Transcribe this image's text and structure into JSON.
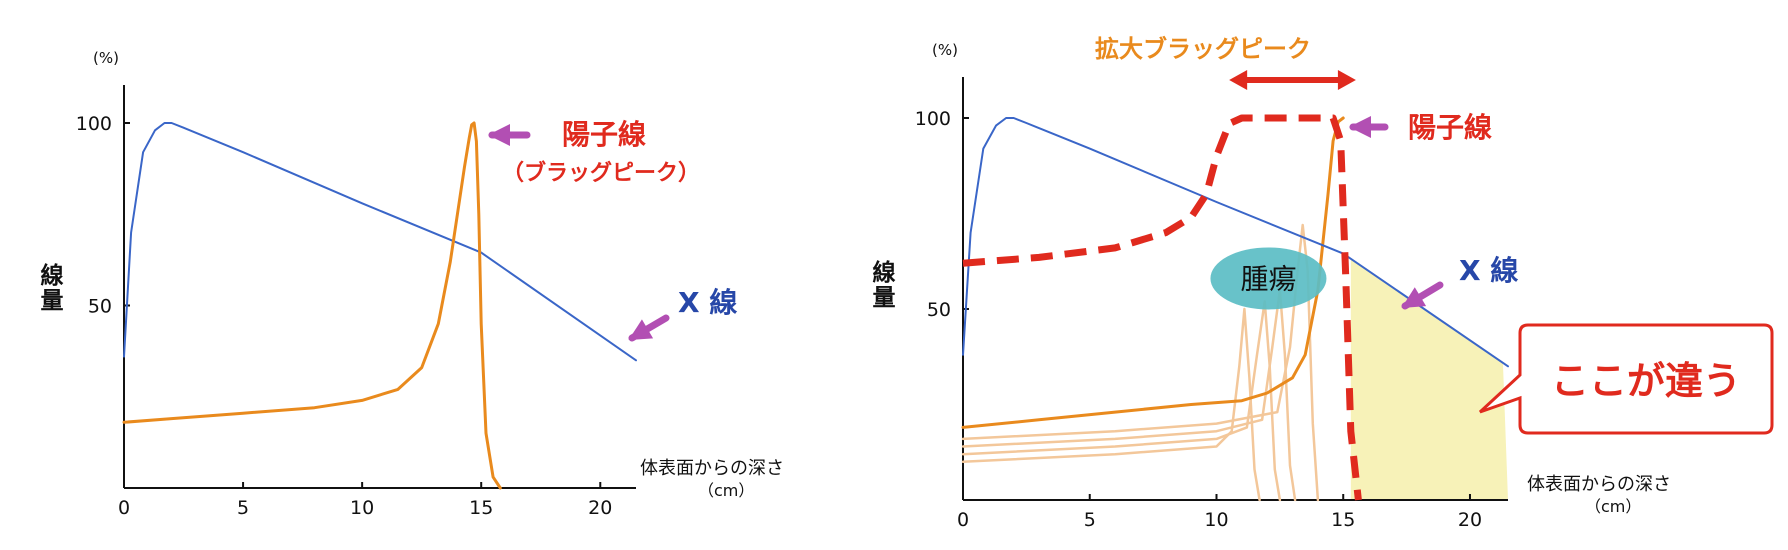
{
  "chart_data": [
    {
      "type": "line",
      "xlabel": "体表面からの深さ",
      "xunit": "（cm）",
      "ylabel": "線量",
      "yunit": "(%)",
      "xlim": [
        0,
        21.5
      ],
      "ylim": [
        0,
        100
      ],
      "x_ticks": [
        0,
        5,
        10,
        15,
        20
      ],
      "y_ticks": [
        50,
        100
      ],
      "series": [
        {
          "name": "X 線",
          "color": "#3a66c8",
          "x": [
            0,
            0.3,
            0.8,
            1.3,
            1.7,
            2.0,
            2.5,
            5,
            10,
            15,
            21.5
          ],
          "y": [
            36,
            70,
            92,
            98,
            100,
            100,
            98.7,
            92,
            78,
            64.5,
            35
          ]
        },
        {
          "name": "陽子線",
          "color": "#e98a1d",
          "x": [
            0,
            2,
            5,
            8,
            10,
            11.5,
            12.5,
            13.2,
            13.7,
            14.0,
            14.3,
            14.5,
            14.6,
            14.7,
            14.8,
            14.9,
            15.0,
            15.2,
            15.5,
            15.8
          ],
          "y": [
            18,
            19,
            20.5,
            22,
            24,
            27,
            33,
            45,
            62,
            75,
            88,
            96,
            99.5,
            100,
            95,
            75,
            45,
            15,
            3,
            0
          ]
        }
      ],
      "annotations": {
        "proton_label": "陽子線",
        "proton_sub": "（ブラッグピーク）",
        "xray_label": "X 線"
      }
    },
    {
      "type": "line",
      "xlabel": "体表面からの深さ",
      "xunit": "（cm）",
      "ylabel": "線量",
      "yunit": "(%)",
      "xlim": [
        0,
        21.5
      ],
      "ylim": [
        0,
        100
      ],
      "x_ticks": [
        0,
        5,
        10,
        15,
        20
      ],
      "y_ticks": [
        50,
        100
      ],
      "series": [
        {
          "name": "X 線",
          "color": "#3a66c8",
          "x": [
            0,
            0.3,
            0.8,
            1.3,
            1.7,
            2.0,
            2.5,
            5,
            10,
            15,
            21.5
          ],
          "y": [
            38,
            70,
            92,
            98,
            100,
            100,
            98.7,
            92,
            78,
            64.5,
            35
          ]
        },
        {
          "name": "陽子線",
          "color": "#e02a1e",
          "style": "dashed",
          "x": [
            0,
            3,
            6,
            8,
            9,
            9.6,
            10.0,
            10.5,
            11,
            12,
            13,
            14,
            14.6,
            14.9,
            15.1,
            15.3,
            15.6
          ],
          "y": [
            62,
            63.5,
            66,
            70,
            74,
            80,
            90,
            98.5,
            100,
            100,
            100,
            100,
            100,
            94,
            58,
            18,
            0
          ]
        },
        {
          "color": "#e98a1d",
          "x": [
            0,
            3,
            6,
            9,
            11,
            12,
            13,
            13.5,
            14.0,
            14.4,
            14.6,
            14.8,
            15.0
          ],
          "y": [
            19,
            21,
            23,
            25,
            26,
            28,
            32,
            38,
            55,
            80,
            94,
            99,
            100
          ]
        },
        {
          "color": "#f3c79a",
          "x": [
            0,
            6,
            10,
            10.6,
            10.9,
            11.1,
            11.3,
            11.5,
            11.7
          ],
          "y": [
            10,
            12,
            14,
            18,
            35,
            50,
            32,
            8,
            0
          ]
        },
        {
          "color": "#f3c79a",
          "x": [
            0,
            6,
            10,
            11.2,
            11.6,
            11.9,
            12.1,
            12.3,
            12.5
          ],
          "y": [
            12,
            14,
            16,
            19,
            38,
            52,
            35,
            8,
            0
          ]
        },
        {
          "color": "#f3c79a",
          "x": [
            0,
            6,
            10,
            11.8,
            12.2,
            12.5,
            12.7,
            12.9,
            13.1
          ],
          "y": [
            14,
            16,
            18,
            21,
            40,
            55,
            38,
            9,
            0
          ]
        },
        {
          "color": "#f3c79a",
          "x": [
            0,
            6,
            10,
            12.4,
            12.9,
            13.2,
            13.4,
            13.6,
            13.8,
            14.0
          ],
          "y": [
            16,
            18,
            20,
            23,
            40,
            60,
            72,
            60,
            20,
            0
          ]
        }
      ],
      "shaded_region": {
        "x_from": 15.3,
        "x_to": 21.5,
        "color": "#f7f2b8"
      },
      "annotations": {
        "sobp_label": "拡大ブラッグピーク",
        "sobp_range": [
          10.5,
          15.5
        ],
        "proton_label": "陽子線",
        "xray_label": "X 線",
        "tumor_label": "腫瘍",
        "difference_label": "ここが違う"
      }
    }
  ],
  "colors": {
    "xray_blue": "#3a66c8",
    "proton_orange": "#e98a1d",
    "proton_red": "#e02a1e",
    "arrow_purple": "#b24fb3",
    "tumor_teal": "#5bbdc4",
    "shade_yellow": "#f7f2b8"
  }
}
